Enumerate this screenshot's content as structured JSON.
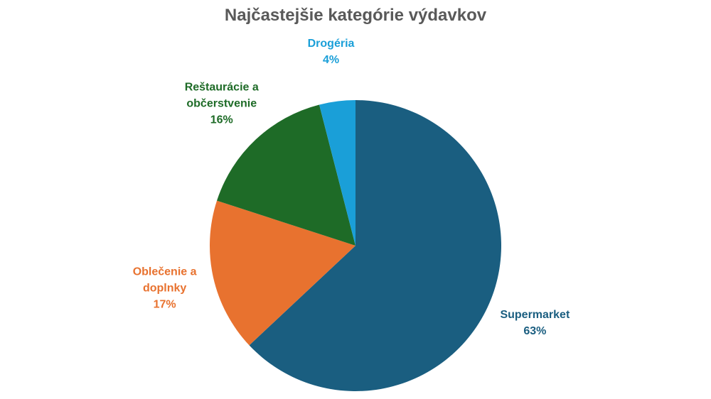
{
  "chart_data": {
    "type": "pie",
    "title": "Najčastejšie kategórie výdavkov",
    "categories": [
      "Supermarket",
      "Oblečenie a doplnky",
      "Reštaurácie a občerstvenie",
      "Drogéria"
    ],
    "values": [
      63,
      17,
      16,
      4
    ],
    "value_labels": [
      "63%",
      "17%",
      "16%",
      "4%"
    ],
    "colors": [
      "#1a5e80",
      "#e8722f",
      "#1e6b27",
      "#1a9fd8"
    ]
  }
}
